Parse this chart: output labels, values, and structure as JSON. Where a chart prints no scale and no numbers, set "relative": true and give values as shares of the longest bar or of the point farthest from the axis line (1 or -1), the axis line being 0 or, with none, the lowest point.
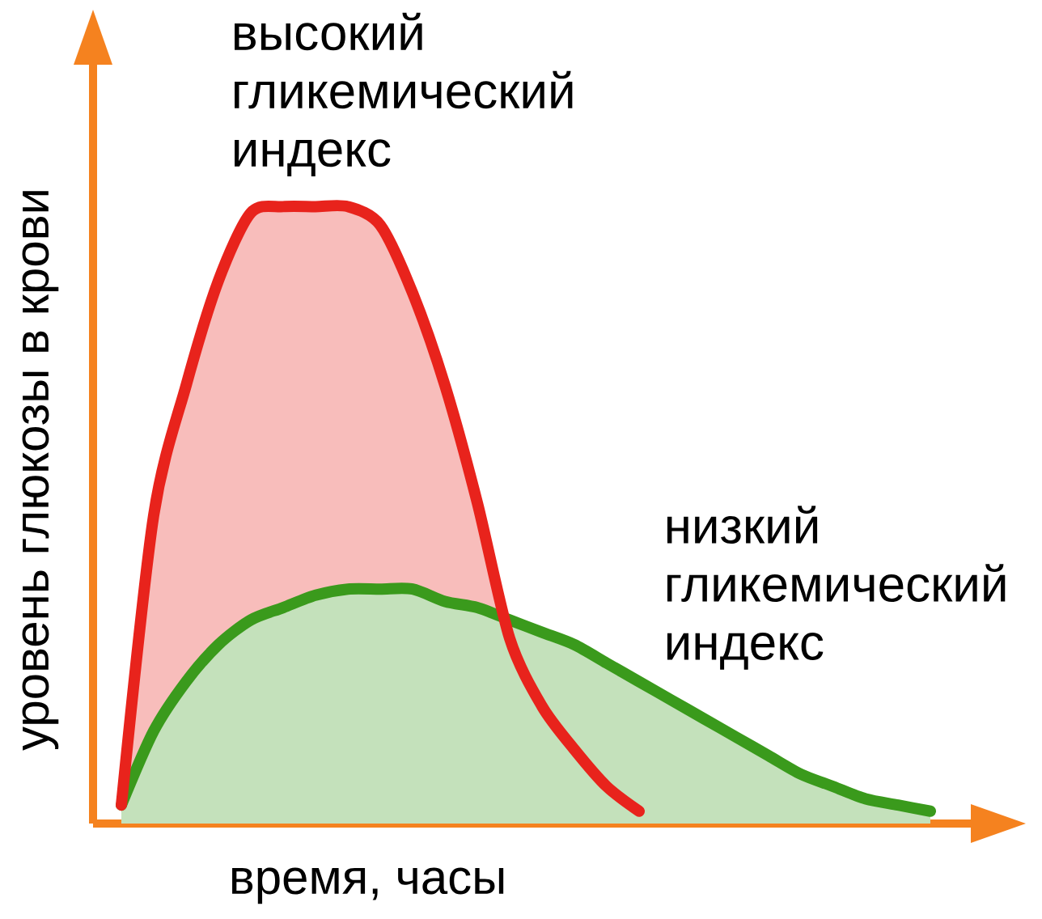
{
  "chart_data": {
    "type": "area",
    "relative": true,
    "xlabel": "время, часы",
    "ylabel": "уровень глюкозы в крови",
    "categories": [
      null,
      null,
      null,
      null,
      null,
      null,
      null,
      null,
      null,
      null,
      null,
      null,
      null,
      null,
      null,
      null,
      null,
      null,
      null,
      null,
      null,
      null,
      null,
      null,
      null,
      null
    ],
    "series": [
      {
        "name": "высокий гликемический индекс",
        "color": "#e8231c",
        "values": [
          0.03,
          0.5,
          0.71,
          0.88,
          0.99,
          1.0,
          1.0,
          1.0,
          0.97,
          0.86,
          0.71,
          0.52,
          0.3,
          0.19,
          0.12,
          0.06,
          0.02,
          null,
          null,
          null,
          null,
          null,
          null,
          null,
          null,
          null
        ]
      },
      {
        "name": "низкий гликемический индекс",
        "color": "#3a9a1c",
        "values": [
          0.03,
          0.15,
          0.23,
          0.29,
          0.33,
          0.35,
          0.37,
          0.38,
          0.38,
          0.38,
          0.36,
          0.35,
          0.33,
          0.31,
          0.29,
          0.26,
          0.23,
          0.2,
          0.17,
          0.14,
          0.11,
          0.08,
          0.06,
          0.04,
          0.03,
          0.02
        ]
      }
    ]
  }
}
